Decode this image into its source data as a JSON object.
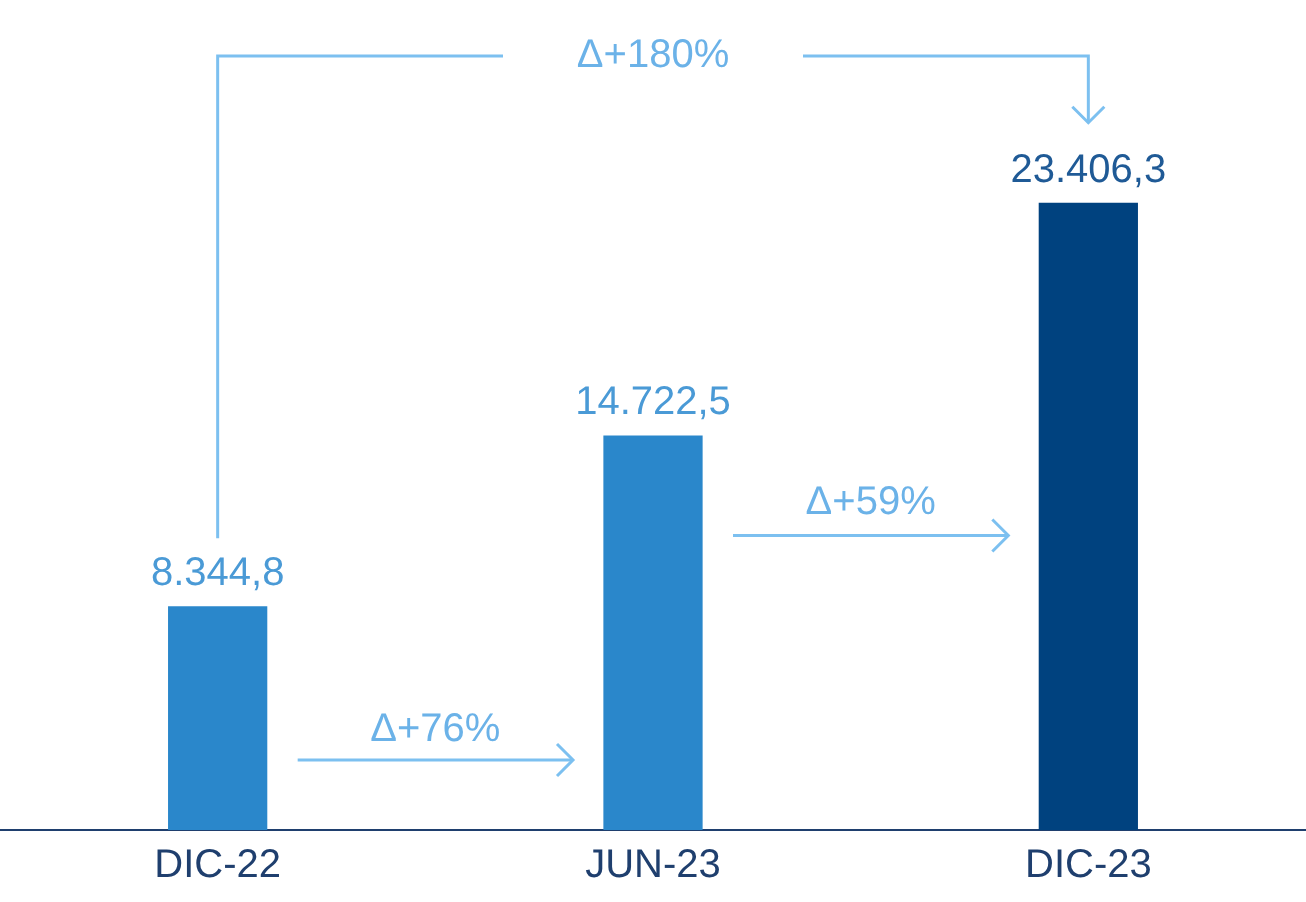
{
  "chart_data": {
    "type": "bar",
    "categories": [
      "DIC-22",
      "JUN-23",
      "DIC-23"
    ],
    "values": [
      8344.8,
      14722.5,
      23406.3
    ],
    "colors": [
      "#2a87cb",
      "#2a87cb",
      "#00427f"
    ],
    "value_labels": [
      "8.344,8",
      "14.722,5",
      "23.406,3"
    ],
    "annotations": [
      "Δ+180%",
      "Δ+76%",
      "Δ+59%"
    ],
    "grid": false,
    "legend": false
  }
}
